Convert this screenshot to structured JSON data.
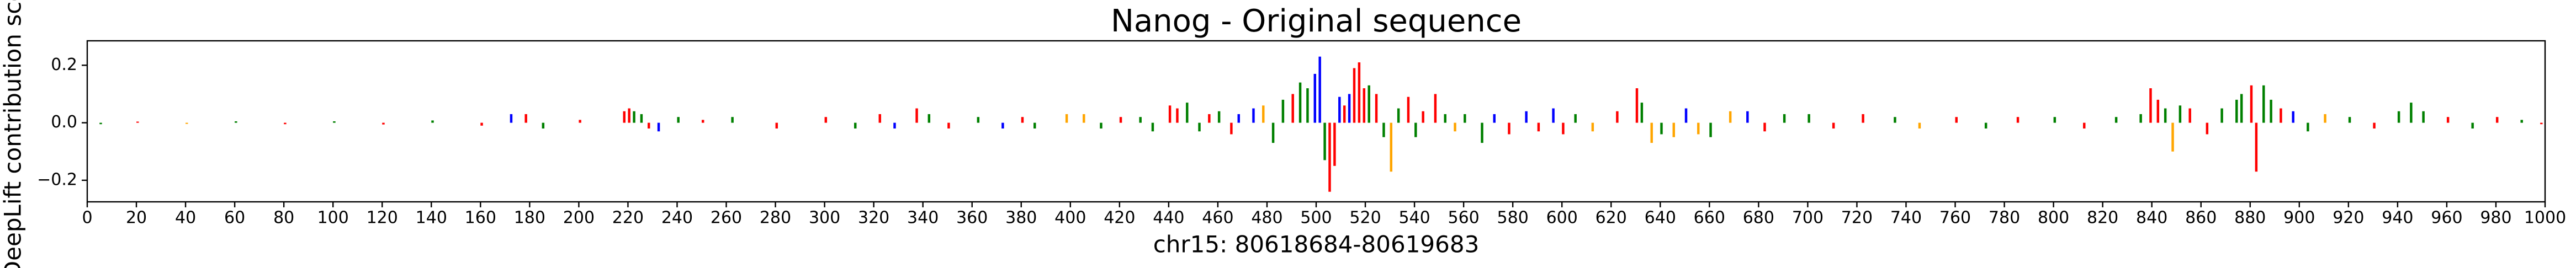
{
  "chart_data": {
    "type": "sequence-logo",
    "title": "Nanog - Original sequence",
    "x_label": "chr15: 80618684-80619683",
    "y_label": "DeepLift contribution score",
    "xlim": [
      0,
      1000
    ],
    "ylim": [
      -0.275,
      0.285
    ],
    "xticks": [
      0,
      20,
      40,
      60,
      80,
      100,
      120,
      140,
      160,
      180,
      200,
      220,
      240,
      260,
      280,
      300,
      320,
      340,
      360,
      380,
      400,
      420,
      440,
      460,
      480,
      500,
      520,
      540,
      560,
      580,
      600,
      620,
      640,
      660,
      680,
      700,
      720,
      740,
      760,
      780,
      800,
      820,
      840,
      860,
      880,
      900,
      920,
      940,
      960,
      980,
      1000
    ],
    "yticks": [
      {
        "value": -0.2,
        "label": "−0.2"
      },
      {
        "value": 0,
        "label": "0.0"
      },
      {
        "value": 0.2,
        "label": "0.2"
      }
    ],
    "base_colors": {
      "A": "#008000",
      "C": "#0000ff",
      "G": "#ffa500",
      "T": "#ff0000"
    },
    "x": [
      5,
      20,
      40,
      60,
      80,
      100,
      120,
      140,
      160,
      172,
      178,
      185,
      200,
      218,
      220,
      222,
      225,
      228,
      232,
      240,
      250,
      262,
      280,
      300,
      312,
      322,
      328,
      337,
      342,
      350,
      362,
      372,
      380,
      385,
      398,
      405,
      412,
      420,
      428,
      433,
      440,
      443,
      447,
      452,
      456,
      460,
      465,
      468,
      474,
      478,
      482,
      486,
      490,
      493,
      496,
      499,
      501,
      503,
      505,
      507,
      509,
      511,
      513,
      515,
      517,
      519,
      521,
      524,
      527,
      530,
      533,
      537,
      540,
      543,
      548,
      552,
      556,
      560,
      567,
      572,
      578,
      585,
      590,
      596,
      600,
      605,
      612,
      622,
      630,
      632,
      636,
      640,
      645,
      650,
      655,
      660,
      668,
      675,
      682,
      690,
      700,
      710,
      722,
      735,
      745,
      760,
      772,
      785,
      800,
      812,
      825,
      835,
      839,
      842,
      845,
      848,
      851,
      855,
      862,
      868,
      874,
      876,
      880,
      882,
      885,
      888,
      892,
      897,
      903,
      910,
      920,
      930,
      940,
      945,
      950,
      960,
      970,
      980,
      990,
      998
    ],
    "values": [
      -0.005,
      0.004,
      -0.004,
      0.005,
      -0.005,
      0.005,
      -0.006,
      0.008,
      -0.01,
      0.03,
      0.03,
      -0.02,
      0.01,
      0.04,
      0.05,
      0.04,
      0.03,
      -0.02,
      -0.03,
      0.02,
      0.01,
      0.02,
      -0.02,
      0.02,
      -0.02,
      0.03,
      -0.02,
      0.05,
      0.03,
      -0.02,
      0.02,
      -0.02,
      0.02,
      -0.02,
      0.03,
      0.03,
      -0.02,
      0.02,
      0.02,
      -0.03,
      0.06,
      0.05,
      0.07,
      -0.03,
      0.03,
      0.04,
      -0.04,
      0.03,
      0.05,
      0.06,
      -0.07,
      0.08,
      0.1,
      0.14,
      0.12,
      0.17,
      0.23,
      -0.13,
      -0.24,
      -0.15,
      0.09,
      0.06,
      0.1,
      0.19,
      0.21,
      0.12,
      0.13,
      0.1,
      -0.05,
      -0.17,
      0.05,
      0.09,
      -0.05,
      0.04,
      0.1,
      0.03,
      -0.03,
      0.03,
      -0.07,
      0.03,
      -0.04,
      0.04,
      -0.03,
      0.05,
      -0.04,
      0.03,
      -0.03,
      0.04,
      0.12,
      0.07,
      -0.07,
      -0.04,
      -0.05,
      0.05,
      -0.04,
      -0.05,
      0.04,
      0.04,
      -0.03,
      0.03,
      0.03,
      -0.02,
      0.03,
      0.02,
      -0.02,
      0.02,
      -0.02,
      0.02,
      0.02,
      -0.02,
      0.02,
      0.03,
      0.12,
      0.08,
      0.05,
      -0.1,
      0.06,
      0.05,
      -0.04,
      0.05,
      0.08,
      0.1,
      0.13,
      -0.17,
      0.13,
      0.08,
      0.05,
      0.04,
      -0.03,
      0.03,
      0.02,
      -0.02,
      0.04,
      0.07,
      0.04,
      0.02,
      -0.02,
      0.02,
      0.01,
      -0.005
    ],
    "bases": [
      "A",
      "T",
      "G",
      "A",
      "T",
      "A",
      "T",
      "A",
      "T",
      "C",
      "T",
      "A",
      "T",
      "T",
      "T",
      "A",
      "A",
      "T",
      "C",
      "A",
      "T",
      "A",
      "T",
      "T",
      "A",
      "T",
      "C",
      "T",
      "A",
      "T",
      "A",
      "C",
      "T",
      "A",
      "G",
      "G",
      "A",
      "T",
      "A",
      "A",
      "T",
      "T",
      "A",
      "A",
      "T",
      "A",
      "T",
      "C",
      "C",
      "G",
      "A",
      "A",
      "T",
      "A",
      "A",
      "C",
      "C",
      "A",
      "T",
      "T",
      "C",
      "T",
      "C",
      "T",
      "T",
      "T",
      "A",
      "T",
      "A",
      "G",
      "A",
      "T",
      "A",
      "T",
      "T",
      "A",
      "G",
      "A",
      "A",
      "C",
      "T",
      "C",
      "T",
      "C",
      "T",
      "A",
      "G",
      "T",
      "T",
      "A",
      "G",
      "A",
      "G",
      "C",
      "G",
      "A",
      "G",
      "C",
      "T",
      "A",
      "A",
      "T",
      "T",
      "A",
      "G",
      "T",
      "A",
      "T",
      "A",
      "T",
      "A",
      "A",
      "T",
      "T",
      "A",
      "G",
      "A",
      "T",
      "T",
      "A",
      "A",
      "A",
      "T",
      "T",
      "A",
      "A",
      "T",
      "C",
      "A",
      "G",
      "A",
      "T",
      "A",
      "A",
      "A",
      "T",
      "A",
      "T",
      "A",
      "T"
    ]
  }
}
